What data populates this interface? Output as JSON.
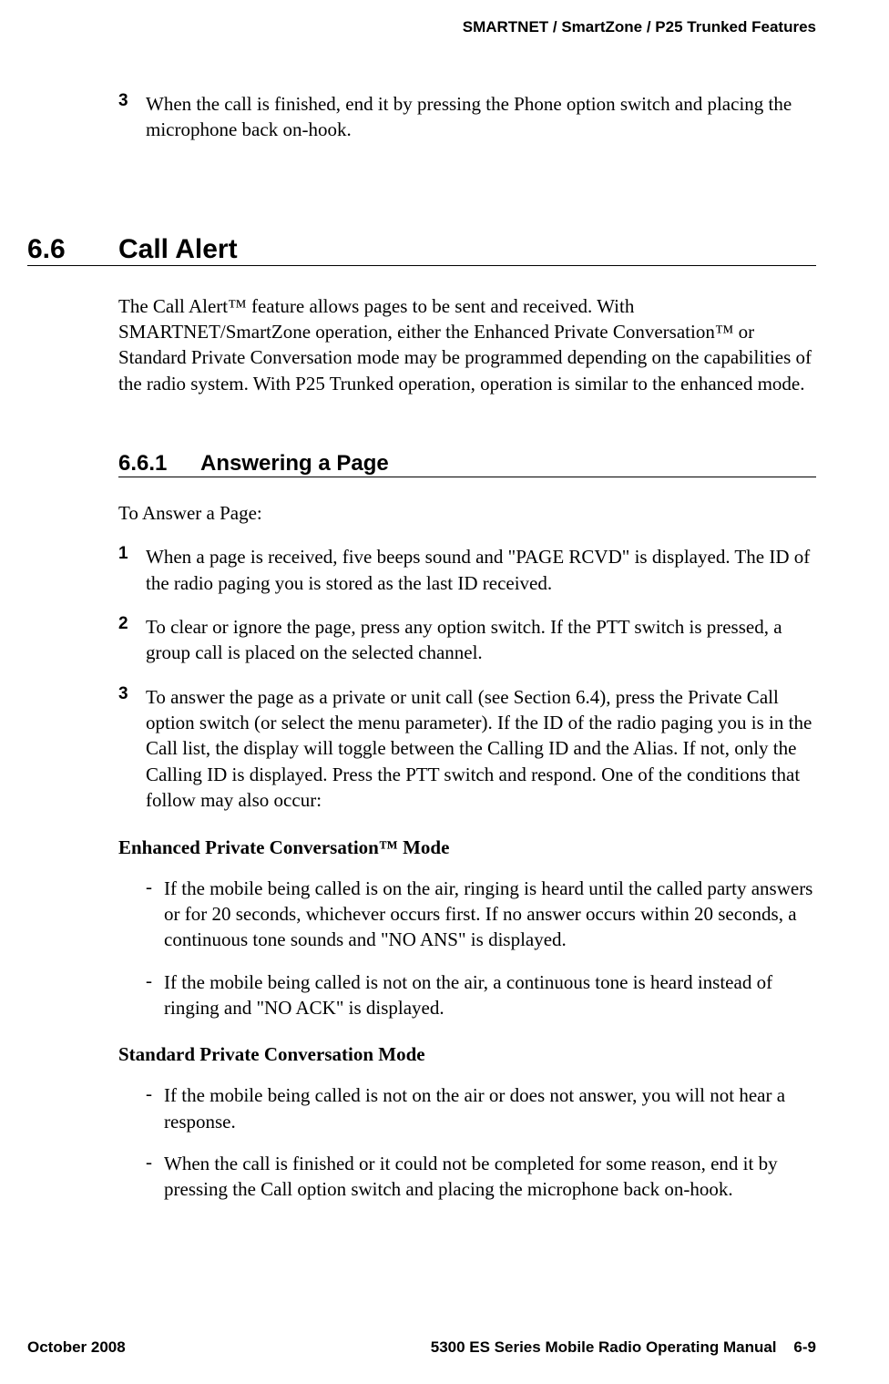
{
  "header": {
    "running": "SMARTNET / SmartZone / P25 Trunked Features"
  },
  "intro_item": {
    "num": "3",
    "text": "When the call is finished, end it by pressing the Phone option switch and placing the microphone back on-hook."
  },
  "section": {
    "num": "6.6",
    "title": "Call Alert",
    "para": "The Call Alert™ feature allows pages to be sent and received. With SMARTNET/SmartZone operation, either the Enhanced Private Conversation™ or Standard Private Conversation mode may be programmed depending on the capabilities of the radio system. With P25 Trunked operation, operation is similar to the enhanced mode."
  },
  "subsection": {
    "num": "6.6.1",
    "title": "Answering a Page",
    "lead": "To Answer a Page:",
    "steps": [
      {
        "num": "1",
        "text": "When a page is received, five beeps sound and \"PAGE RCVD\" is displayed. The ID of the radio paging you is stored as the last ID received."
      },
      {
        "num": "2",
        "text": "To clear or ignore the page, press any option switch. If the PTT switch is pressed, a group call is placed on the selected channel."
      },
      {
        "num": "3",
        "text": "To answer the page as a private or unit call (see Section 6.4), press the Private Call option switch (or select the menu parameter). If the ID of the radio paging you is in the Call list, the display will toggle between the Calling ID and the Alias. If not, only the Calling ID is displayed. Press the PTT switch and respond. One of the conditions that follow may also occur:"
      }
    ],
    "mode1": {
      "title": "Enhanced Private Conversation™ Mode",
      "bullets": [
        "If the mobile being called is on the air, ringing is heard until the called party answers or for 20 seconds, whichever occurs first. If no answer occurs within 20 seconds, a continuous tone sounds and \"NO ANS\" is displayed.",
        "If the mobile being called is not on the air, a continuous tone is heard instead of ringing and \"NO ACK\" is displayed."
      ]
    },
    "mode2": {
      "title": "Standard Private Conversation Mode",
      "bullets": [
        "If the mobile being called is not on the air or does not answer, you will not hear a response.",
        "When the call is finished or it could not be completed for some reason, end it by pressing the Call option switch and placing the microphone back on-hook."
      ]
    }
  },
  "footer": {
    "left": "October 2008",
    "center": "5300 ES Series Mobile Radio Operating Manual",
    "right": "6-9"
  }
}
